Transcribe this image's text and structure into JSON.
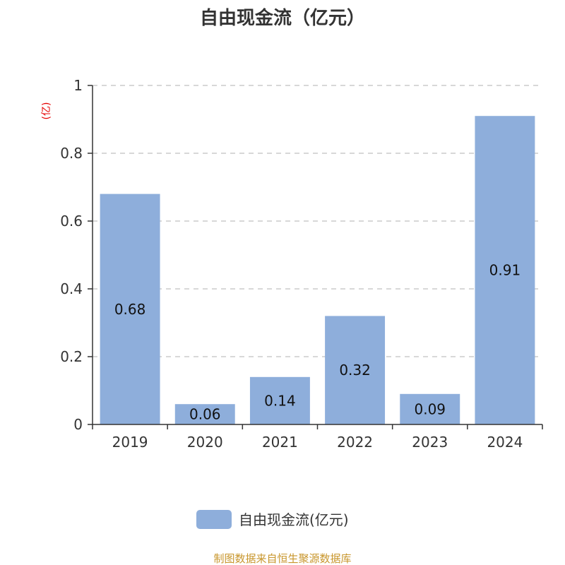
{
  "chart_data": {
    "type": "bar",
    "title": "自由现金流（亿元）",
    "ylabel": "(亿)",
    "categories": [
      "2019",
      "2020",
      "2021",
      "2022",
      "2023",
      "2024"
    ],
    "series": [
      {
        "name": "自由现金流(亿元)",
        "values": [
          0.68,
          0.06,
          0.14,
          0.32,
          0.09,
          0.91
        ]
      }
    ],
    "data_labels": [
      "0.68",
      "0.06",
      "0.14",
      "0.32",
      "0.09",
      "0.91"
    ],
    "y_ticks": [
      "0",
      "0.2",
      "0.4",
      "0.6",
      "0.8",
      "1"
    ],
    "ylim": [
      0,
      1
    ],
    "grid": true,
    "legend": "bottom-center"
  },
  "colors": {
    "bar": "#8eaedb",
    "unit_label": "#e60000",
    "source": "#c8962c"
  },
  "source_text": "制图数据来自恒生聚源数据库"
}
